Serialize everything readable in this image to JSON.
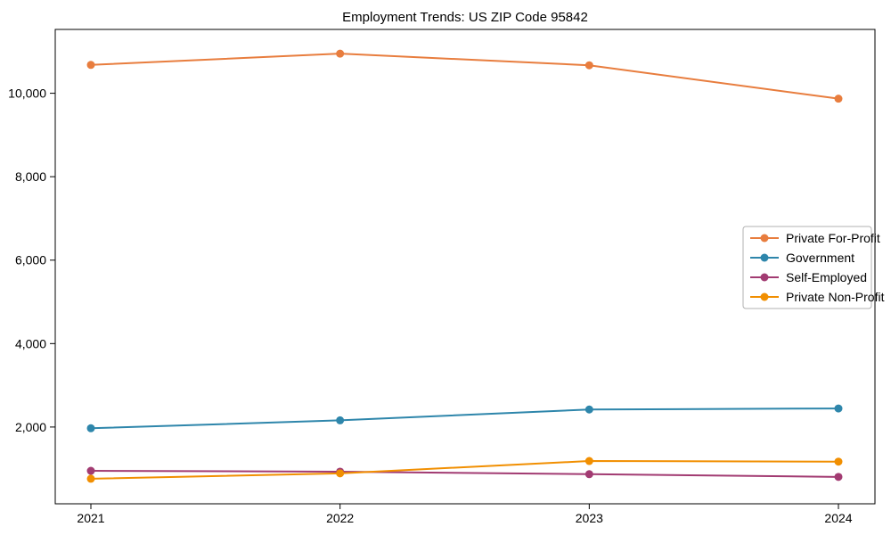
{
  "figure": {
    "title": "Employment Trends: US ZIP Code 95842"
  },
  "chart_data": {
    "type": "line",
    "title": "Employment Trends: US ZIP Code 95842",
    "xlabel": "",
    "ylabel": "",
    "categories": [
      "2021",
      "2022",
      "2023",
      "2024"
    ],
    "series": [
      {
        "name": "Private For-Profit",
        "color": "#e87d3e",
        "values": [
          10680,
          10950,
          10670,
          9870
        ]
      },
      {
        "name": "Government",
        "color": "#2e86ab",
        "values": [
          1970,
          2160,
          2420,
          2445
        ]
      },
      {
        "name": "Self-Employed",
        "color": "#a23b72",
        "values": [
          950,
          930,
          870,
          805
        ]
      },
      {
        "name": "Private Non-Profit",
        "color": "#f18f01",
        "values": [
          760,
          890,
          1185,
          1170
        ]
      }
    ],
    "yticks": [
      {
        "value": 2000,
        "label": "2,000"
      },
      {
        "value": 4000,
        "label": "4,000"
      },
      {
        "value": 6000,
        "label": "6,000"
      },
      {
        "value": 8000,
        "label": "8,000"
      },
      {
        "value": 10000,
        "label": "10,000"
      }
    ],
    "ylim": [
      160,
      11530
    ],
    "grid": false,
    "marker": "circle",
    "legend_position": "center right",
    "legend_entries": [
      "Private For-Profit",
      "Government",
      "Self-Employed",
      "Private Non-Profit"
    ],
    "colors": {
      "axis": "#000000",
      "legend_border": "#b0b0b0",
      "background": "#ffffff"
    }
  }
}
